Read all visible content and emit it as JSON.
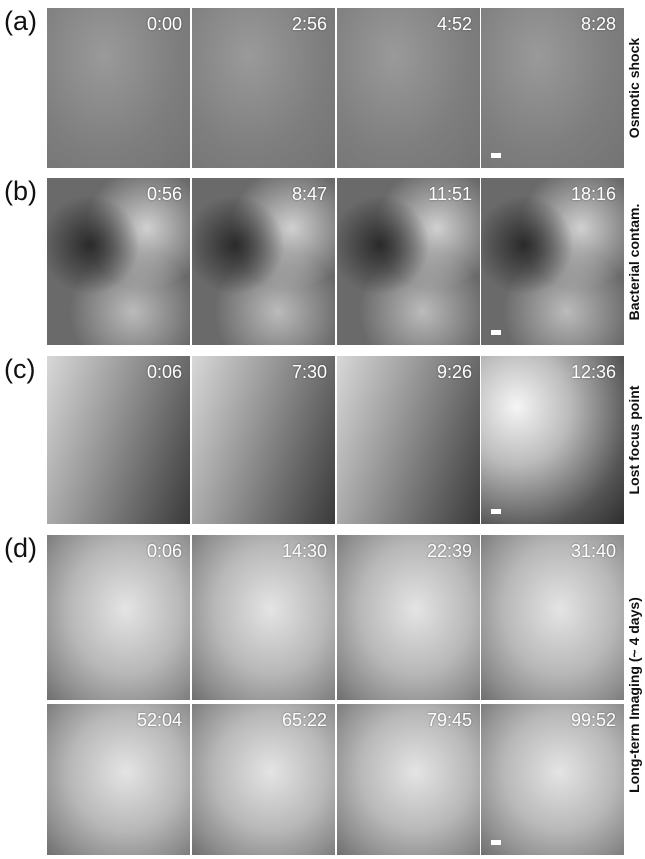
{
  "panels": [
    {
      "label": "(a)",
      "side_label": "Osmotic  shock",
      "rows": [
        [
          "0:00",
          "2:56",
          "4:52",
          "8:28"
        ]
      ]
    },
    {
      "label": "(b)",
      "side_label": "Bacterial contam.",
      "rows": [
        [
          "0:56",
          "8:47",
          "11:51",
          "18:16"
        ]
      ]
    },
    {
      "label": "(c)",
      "side_label": "Lost focus point",
      "rows": [
        [
          "0:06",
          "7:30",
          "9:26",
          "12:36"
        ]
      ]
    },
    {
      "label": "(d)",
      "side_label": "Long-term Imaging (~ 4 days)",
      "rows": [
        [
          "0:06",
          "14:30",
          "22:39",
          "31:40"
        ],
        [
          "52:04",
          "65:22",
          "79:45",
          "99:52"
        ]
      ]
    }
  ]
}
